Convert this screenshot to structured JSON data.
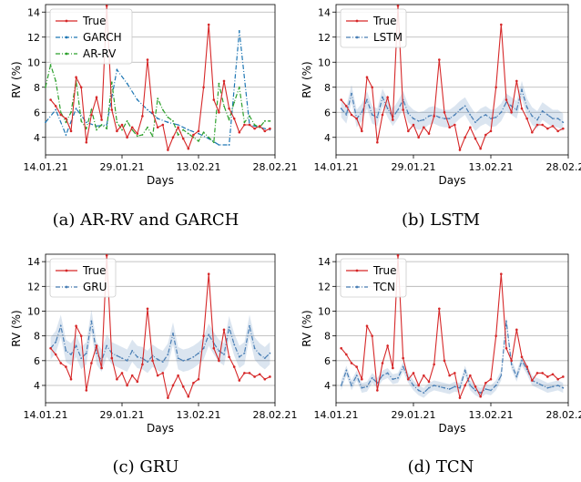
{
  "chart_data": [
    {
      "type": "line",
      "caption": "(a) AR-RV and GARCH",
      "xlabel": "Days",
      "ylabel": "RV (%)",
      "xlim": [
        0,
        45
      ],
      "ylim": [
        2.6,
        14.6
      ],
      "yticks": [
        4,
        6,
        8,
        10,
        12,
        14
      ],
      "xticks": [
        {
          "pos": 0,
          "label": "14.01.21"
        },
        {
          "pos": 15,
          "label": "29.01.21"
        },
        {
          "pos": 30,
          "label": "13.02.21"
        },
        {
          "pos": 45,
          "label": "28.02.21"
        }
      ],
      "legend": "upper-left",
      "series": [
        {
          "name": "True",
          "color": "#d62728",
          "style": "solid-dot",
          "x": [
            1,
            2,
            3,
            4,
            5,
            6,
            7,
            8,
            9,
            10,
            11,
            12,
            13,
            14,
            15,
            16,
            17,
            18,
            19,
            20,
            21,
            22,
            23,
            24,
            25,
            26,
            27,
            28,
            29,
            30,
            31,
            32,
            33,
            34,
            35,
            36,
            37,
            38,
            39,
            40,
            41,
            42,
            43,
            44
          ],
          "values": [
            7.0,
            6.5,
            5.8,
            5.5,
            4.5,
            8.8,
            8.0,
            3.6,
            5.8,
            7.2,
            5.4,
            14.5,
            6.2,
            4.5,
            5.0,
            4.0,
            4.8,
            4.3,
            5.7,
            10.2,
            6.0,
            4.8,
            5.0,
            3.0,
            4.0,
            4.8,
            3.9,
            3.1,
            4.2,
            4.5,
            8.0,
            13.0,
            7.0,
            6.0,
            8.5,
            6.3,
            5.5,
            4.4,
            5.0,
            5.0,
            4.7,
            4.9,
            4.5,
            4.7
          ]
        },
        {
          "name": "GARCH",
          "color": "#1f77b4",
          "style": "dashdot",
          "x": [
            0,
            2,
            4,
            6,
            8,
            10,
            12,
            14,
            16,
            18,
            20,
            22,
            24,
            26,
            28,
            30,
            32,
            34,
            36,
            38,
            40,
            42,
            44
          ],
          "values": [
            5.2,
            6.2,
            4.2,
            6.3,
            5.2,
            4.9,
            5.0,
            9.4,
            8.3,
            7.0,
            6.2,
            5.5,
            5.2,
            5.0,
            4.6,
            4.3,
            3.9,
            3.4,
            3.4,
            12.5,
            5.0,
            4.8,
            4.6
          ]
        },
        {
          "name": "AR-RV",
          "color": "#2ca02c",
          "style": "dashdot",
          "x": [
            0,
            1,
            2,
            3,
            4,
            5,
            6,
            7,
            8,
            9,
            10,
            11,
            12,
            13,
            14,
            15,
            16,
            17,
            18,
            19,
            20,
            21,
            22,
            23,
            24,
            25,
            26,
            27,
            28,
            29,
            30,
            31,
            32,
            33,
            34,
            35,
            36,
            37,
            38,
            39,
            40,
            41,
            42,
            43,
            44
          ],
          "values": [
            8.0,
            9.8,
            8.5,
            6.0,
            5.2,
            6.0,
            8.5,
            5.3,
            4.7,
            6.2,
            4.6,
            5.0,
            4.7,
            8.4,
            5.2,
            4.6,
            5.3,
            4.6,
            4.1,
            4.2,
            4.8,
            4.1,
            7.1,
            6.2,
            5.6,
            5.3,
            4.2,
            4.6,
            4.3,
            4.0,
            3.7,
            4.4,
            4.0,
            3.6,
            8.3,
            6.5,
            5.4,
            6.8,
            8.0,
            5.2,
            5.7,
            5.0,
            4.8,
            5.3,
            5.3
          ]
        }
      ]
    },
    {
      "type": "line",
      "caption": "(b) LSTM",
      "xlabel": "Days",
      "ylabel": "RV (%)",
      "xlim": [
        0,
        45
      ],
      "ylim": [
        2.6,
        14.6
      ],
      "yticks": [
        4,
        6,
        8,
        10,
        12,
        14
      ],
      "xticks": [
        {
          "pos": 0,
          "label": "14.01.21"
        },
        {
          "pos": 15,
          "label": "29.01.21"
        },
        {
          "pos": 30,
          "label": "13.02.21"
        },
        {
          "pos": 45,
          "label": "28.02.21"
        }
      ],
      "legend": "upper-left",
      "series": [
        {
          "name": "True",
          "color": "#d62728",
          "style": "solid-dot",
          "x": [
            1,
            2,
            3,
            4,
            5,
            6,
            7,
            8,
            9,
            10,
            11,
            12,
            13,
            14,
            15,
            16,
            17,
            18,
            19,
            20,
            21,
            22,
            23,
            24,
            25,
            26,
            27,
            28,
            29,
            30,
            31,
            32,
            33,
            34,
            35,
            36,
            37,
            38,
            39,
            40,
            41,
            42,
            43,
            44
          ],
          "values": [
            7.0,
            6.5,
            5.8,
            5.5,
            4.5,
            8.8,
            8.0,
            3.6,
            5.8,
            7.2,
            5.4,
            14.5,
            6.2,
            4.5,
            5.0,
            4.0,
            4.8,
            4.3,
            5.7,
            10.2,
            6.0,
            4.8,
            5.0,
            3.0,
            4.0,
            4.8,
            3.9,
            3.1,
            4.2,
            4.5,
            8.0,
            13.0,
            7.0,
            6.0,
            8.5,
            6.3,
            5.5,
            4.4,
            5.0,
            5.0,
            4.7,
            4.9,
            4.5,
            4.7
          ]
        },
        {
          "name": "LSTM",
          "color": "#4a7fb5",
          "style": "dashdot-band",
          "band": 0.7,
          "x": [
            1,
            2,
            3,
            4,
            5,
            6,
            7,
            8,
            9,
            10,
            11,
            12,
            13,
            14,
            15,
            16,
            17,
            18,
            19,
            20,
            21,
            22,
            23,
            24,
            25,
            26,
            27,
            28,
            29,
            30,
            31,
            32,
            33,
            34,
            35,
            36,
            37,
            38,
            39,
            40,
            41,
            42,
            43,
            44
          ],
          "values": [
            6.3,
            5.8,
            7.5,
            5.5,
            6.0,
            7.0,
            5.8,
            5.6,
            7.2,
            6.3,
            5.6,
            6.2,
            7.0,
            5.9,
            5.5,
            5.3,
            5.4,
            5.7,
            5.8,
            5.6,
            5.5,
            5.5,
            5.8,
            6.2,
            6.5,
            5.8,
            5.2,
            5.6,
            5.8,
            5.5,
            5.6,
            6.0,
            6.8,
            6.5,
            6.2,
            7.8,
            6.4,
            5.7,
            5.4,
            6.1,
            5.8,
            5.5,
            5.5,
            5.2
          ]
        }
      ]
    },
    {
      "type": "line",
      "caption": "(c) GRU",
      "xlabel": "Days",
      "ylabel": "RV (%)",
      "xlim": [
        0,
        45
      ],
      "ylim": [
        2.6,
        14.6
      ],
      "yticks": [
        4,
        6,
        8,
        10,
        12,
        14
      ],
      "xticks": [
        {
          "pos": 0,
          "label": "14.01.21"
        },
        {
          "pos": 15,
          "label": "29.01.21"
        },
        {
          "pos": 30,
          "label": "13.02.21"
        },
        {
          "pos": 45,
          "label": "28.02.21"
        }
      ],
      "legend": "upper-left",
      "series": [
        {
          "name": "True",
          "color": "#d62728",
          "style": "solid-dot",
          "x": [
            1,
            2,
            3,
            4,
            5,
            6,
            7,
            8,
            9,
            10,
            11,
            12,
            13,
            14,
            15,
            16,
            17,
            18,
            19,
            20,
            21,
            22,
            23,
            24,
            25,
            26,
            27,
            28,
            29,
            30,
            31,
            32,
            33,
            34,
            35,
            36,
            37,
            38,
            39,
            40,
            41,
            42,
            43,
            44
          ],
          "values": [
            7.0,
            6.5,
            5.8,
            5.5,
            4.5,
            8.8,
            8.0,
            3.6,
            5.8,
            7.2,
            5.4,
            14.5,
            6.2,
            4.5,
            5.0,
            4.0,
            4.8,
            4.3,
            5.7,
            10.2,
            6.0,
            4.8,
            5.0,
            3.0,
            4.0,
            4.8,
            3.9,
            3.1,
            4.2,
            4.5,
            8.0,
            13.0,
            7.0,
            6.0,
            8.5,
            6.3,
            5.5,
            4.4,
            5.0,
            5.0,
            4.7,
            4.9,
            4.5,
            4.7
          ]
        },
        {
          "name": "GRU",
          "color": "#4a7fb5",
          "style": "dashdot-band",
          "band": 0.9,
          "x": [
            1,
            2,
            3,
            4,
            5,
            6,
            7,
            8,
            9,
            10,
            11,
            12,
            13,
            14,
            15,
            16,
            17,
            18,
            19,
            20,
            21,
            22,
            23,
            24,
            25,
            26,
            27,
            28,
            29,
            30,
            31,
            32,
            33,
            34,
            35,
            36,
            37,
            38,
            39,
            40,
            41,
            42,
            43,
            44
          ],
          "values": [
            7.0,
            7.5,
            8.8,
            6.8,
            6.5,
            7.2,
            6.2,
            6.6,
            9.2,
            6.6,
            6.0,
            7.2,
            6.6,
            6.4,
            6.2,
            6.0,
            6.8,
            6.3,
            6.2,
            5.9,
            6.4,
            6.1,
            5.9,
            6.5,
            8.2,
            6.2,
            6.0,
            6.1,
            6.3,
            6.6,
            7.0,
            8.1,
            7.4,
            6.8,
            6.5,
            8.7,
            7.3,
            6.3,
            6.6,
            8.8,
            7.0,
            6.5,
            6.2,
            6.6
          ]
        }
      ]
    },
    {
      "type": "line",
      "caption": "(d) TCN",
      "xlabel": "Days",
      "ylabel": "RV (%)",
      "xlim": [
        0,
        45
      ],
      "ylim": [
        2.6,
        14.6
      ],
      "yticks": [
        4,
        6,
        8,
        10,
        12,
        14
      ],
      "xticks": [
        {
          "pos": 0,
          "label": "14.01.21"
        },
        {
          "pos": 15,
          "label": "29.01.21"
        },
        {
          "pos": 30,
          "label": "13.02.21"
        },
        {
          "pos": 45,
          "label": "28.02.21"
        }
      ],
      "legend": "upper-left",
      "series": [
        {
          "name": "True",
          "color": "#d62728",
          "style": "solid-dot",
          "x": [
            1,
            2,
            3,
            4,
            5,
            6,
            7,
            8,
            9,
            10,
            11,
            12,
            13,
            14,
            15,
            16,
            17,
            18,
            19,
            20,
            21,
            22,
            23,
            24,
            25,
            26,
            27,
            28,
            29,
            30,
            31,
            32,
            33,
            34,
            35,
            36,
            37,
            38,
            39,
            40,
            41,
            42,
            43,
            44
          ],
          "values": [
            7.0,
            6.5,
            5.8,
            5.5,
            4.5,
            8.8,
            8.0,
            3.6,
            5.8,
            7.2,
            5.4,
            14.5,
            6.2,
            4.5,
            5.0,
            4.0,
            4.8,
            4.3,
            5.7,
            10.2,
            6.0,
            4.8,
            5.0,
            3.0,
            4.0,
            4.8,
            3.9,
            3.1,
            4.2,
            4.5,
            8.0,
            13.0,
            7.0,
            6.0,
            8.5,
            6.3,
            5.5,
            4.4,
            5.0,
            5.0,
            4.7,
            4.9,
            4.5,
            4.7
          ]
        },
        {
          "name": "TCN",
          "color": "#4a7fb5",
          "style": "dashdot-band",
          "band": 0.4,
          "x": [
            1,
            2,
            3,
            4,
            5,
            6,
            7,
            8,
            9,
            10,
            11,
            12,
            13,
            14,
            15,
            16,
            17,
            18,
            19,
            20,
            21,
            22,
            23,
            24,
            25,
            26,
            27,
            28,
            29,
            30,
            31,
            32,
            33,
            34,
            35,
            36,
            37,
            38,
            39,
            40,
            41,
            42,
            43,
            44
          ],
          "values": [
            4.0,
            5.2,
            4.0,
            4.8,
            3.8,
            3.9,
            4.6,
            4.2,
            4.8,
            5.0,
            4.5,
            4.6,
            5.5,
            4.6,
            4.0,
            3.6,
            3.4,
            3.8,
            4.0,
            3.9,
            3.8,
            3.7,
            3.9,
            3.8,
            5.2,
            4.0,
            3.6,
            3.4,
            3.7,
            3.6,
            4.0,
            4.8,
            9.2,
            5.7,
            4.7,
            6.0,
            5.3,
            4.4,
            4.2,
            4.0,
            3.8,
            3.9,
            4.0,
            3.8
          ]
        }
      ]
    }
  ]
}
